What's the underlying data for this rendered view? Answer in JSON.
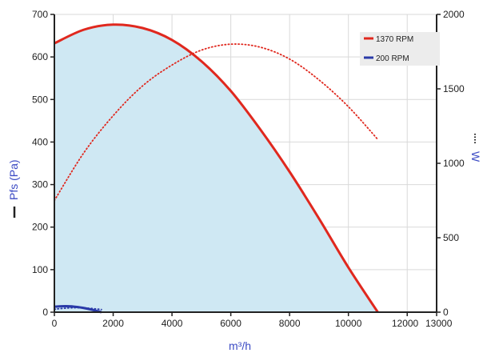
{
  "chart_data": {
    "type": "line",
    "xlabel": "m³/h",
    "ylabel_left": "Pfs (Pa)",
    "ylabel_right": "W",
    "xlim": [
      0,
      13000
    ],
    "ylim_left": [
      0,
      700
    ],
    "ylim_right": [
      0,
      2000
    ],
    "x_ticks": [
      "0",
      "2000",
      "4000",
      "6000",
      "8000",
      "10000",
      "12000",
      "13000"
    ],
    "x_tick_values": [
      0,
      2000,
      4000,
      6000,
      8000,
      10000,
      12000,
      13000
    ],
    "y_left_ticks": [
      "0",
      "100",
      "200",
      "300",
      "400",
      "500",
      "600",
      "700"
    ],
    "y_left_tick_values": [
      0,
      100,
      200,
      300,
      400,
      500,
      600,
      700
    ],
    "y_right_ticks": [
      "0",
      "500",
      "1000",
      "1500",
      "2000"
    ],
    "y_right_tick_values": [
      0,
      500,
      1000,
      1500,
      2000
    ],
    "grid": true,
    "legend_position": "top-right",
    "series": [
      {
        "name": "1370 RPM",
        "axis": "left",
        "style": "solid",
        "color": "#e0281e",
        "fill": "#cfe8f3",
        "x": [
          0,
          1000,
          2000,
          3000,
          4000,
          5000,
          6000,
          7000,
          8000,
          9000,
          10000,
          11000
        ],
        "y": [
          632,
          664,
          676,
          668,
          640,
          590,
          520,
          430,
          330,
          220,
          105,
          0
        ]
      },
      {
        "name": "1370 RPM power",
        "axis": "right",
        "style": "dotted",
        "color": "#e0281e",
        "x": [
          0,
          1000,
          2000,
          3000,
          4000,
          5000,
          6000,
          7000,
          8000,
          9000,
          10000,
          11000
        ],
        "y": [
          750,
          1070,
          1320,
          1520,
          1660,
          1760,
          1800,
          1780,
          1700,
          1560,
          1380,
          1160
        ]
      },
      {
        "name": "200 RPM",
        "axis": "left",
        "style": "solid",
        "color": "#2a3aa8",
        "fill": "#cfe8f3",
        "x": [
          0,
          400,
          800,
          1200,
          1600
        ],
        "y": [
          13,
          14,
          12,
          7,
          0
        ]
      },
      {
        "name": "200 RPM power",
        "axis": "right",
        "style": "dotted",
        "color": "#2a3aa8",
        "x": [
          0,
          400,
          800,
          1200,
          1600
        ],
        "y": [
          20,
          27,
          30,
          26,
          18
        ]
      }
    ],
    "legend": [
      {
        "label": "1370 RPM",
        "color": "#e0281e"
      },
      {
        "label": "200 RPM",
        "color": "#2a3aa8"
      }
    ],
    "colors": {
      "left_axis_title": "#3c4bc4",
      "right_axis_title": "#3c4bc4",
      "x_axis_title": "#3c4bc4",
      "fill": "#cfe8f3",
      "grid": "#d9d9d9"
    }
  }
}
